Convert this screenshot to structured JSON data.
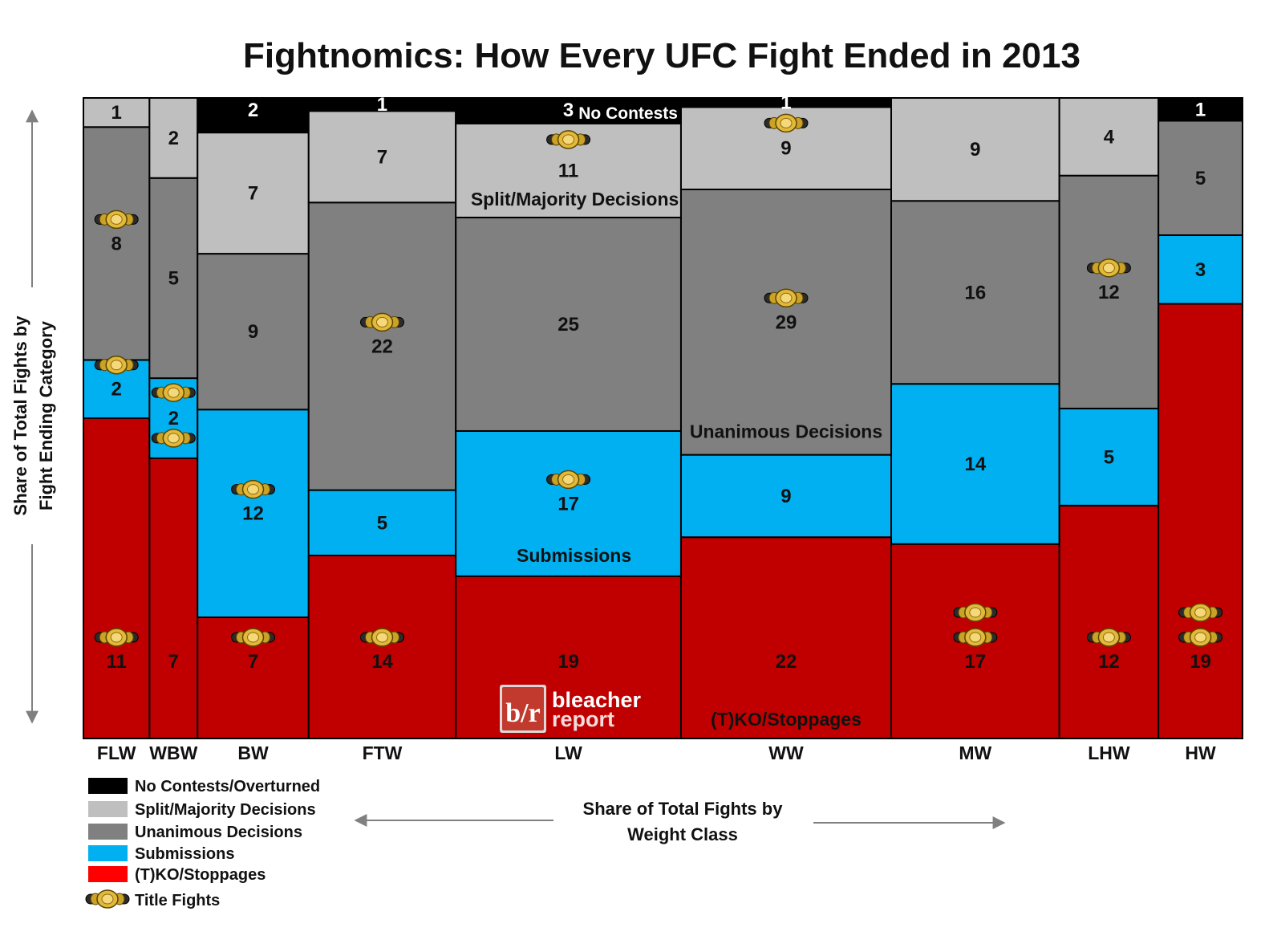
{
  "chart_data": {
    "type": "mosaic",
    "title": "Fightnomics: How Every UFC Fight Ended in 2013",
    "xlabel": "Share of Total Fights by Weight Class",
    "ylabel": "Share of Total Fights by Fight Ending Category",
    "categories": [
      "FLW",
      "WBW",
      "BW",
      "FTW",
      "LW",
      "WW",
      "MW",
      "LHW",
      "HW"
    ],
    "series": [
      {
        "name": "(T)KO/Stoppages",
        "color": "#C00000",
        "values": [
          11,
          7,
          7,
          14,
          19,
          22,
          17,
          12,
          19
        ]
      },
      {
        "name": "Submissions",
        "color": "#00B0F0",
        "values": [
          2,
          2,
          12,
          5,
          17,
          9,
          14,
          5,
          3
        ]
      },
      {
        "name": "Unanimous Decisions",
        "color": "#808080",
        "values": [
          8,
          5,
          9,
          22,
          25,
          29,
          16,
          12,
          5
        ]
      },
      {
        "name": "Split/Majority Decisions",
        "color": "#BFBFBF",
        "values": [
          1,
          2,
          7,
          7,
          11,
          9,
          9,
          4,
          0
        ]
      },
      {
        "name": "No Contests/Overturned",
        "color": "#000000",
        "values": [
          0,
          0,
          2,
          1,
          3,
          1,
          0,
          0,
          1
        ]
      }
    ],
    "title_fights": [
      {
        "category": "FLW",
        "series": "(T)KO/Stoppages",
        "count": 1
      },
      {
        "category": "FLW",
        "series": "Submissions",
        "count": 1
      },
      {
        "category": "FLW",
        "series": "Unanimous Decisions",
        "count": 1
      },
      {
        "category": "WBW",
        "series": "Submissions",
        "count": 2
      },
      {
        "category": "BW",
        "series": "(T)KO/Stoppages",
        "count": 1
      },
      {
        "category": "BW",
        "series": "Submissions",
        "count": 1
      },
      {
        "category": "FTW",
        "series": "(T)KO/Stoppages",
        "count": 1
      },
      {
        "category": "FTW",
        "series": "Unanimous Decisions",
        "count": 1
      },
      {
        "category": "LW",
        "series": "Submissions",
        "count": 1
      },
      {
        "category": "LW",
        "series": "Split/Majority Decisions",
        "count": 1
      },
      {
        "category": "WW",
        "series": "Unanimous Decisions",
        "count": 1
      },
      {
        "category": "WW",
        "series": "Split/Majority Decisions",
        "count": 1
      },
      {
        "category": "MW",
        "series": "(T)KO/Stoppages",
        "count": 2
      },
      {
        "category": "LHW",
        "series": "(T)KO/Stoppages",
        "count": 1
      },
      {
        "category": "LHW",
        "series": "Unanimous Decisions",
        "count": 1
      },
      {
        "category": "HW",
        "series": "(T)KO/Stoppages",
        "count": 2
      }
    ],
    "annotations": {
      "no_contests": "No Contests",
      "split_majority": "Split/Majority Decisions",
      "unanimous": "Unanimous Decisions",
      "submissions": "Submissions",
      "tko": "(T)KO/Stoppages"
    },
    "legend": {
      "placement": "bottom-left",
      "entries": [
        {
          "label": "No Contests/Overturned",
          "color": "#000000"
        },
        {
          "label": "Split/Majority Decisions",
          "color": "#BFBFBF"
        },
        {
          "label": "Unanimous Decisions",
          "color": "#808080"
        },
        {
          "label": "Submissions",
          "color": "#00B0F0"
        },
        {
          "label": "(T)KO/Stoppages",
          "color": "#FF0000"
        },
        {
          "label": "Title Fights",
          "icon": "championship-belt-icon"
        }
      ]
    }
  },
  "brand": {
    "logo_letters": "b/r",
    "word1": "bleacher",
    "word2": "report"
  },
  "axes": {
    "y_title_line1": "Share of Total Fights by",
    "y_title_line2": "Fight Ending Category",
    "x_title_line1": "Share of Total Fights by",
    "x_title_line2": "Weight Class"
  }
}
